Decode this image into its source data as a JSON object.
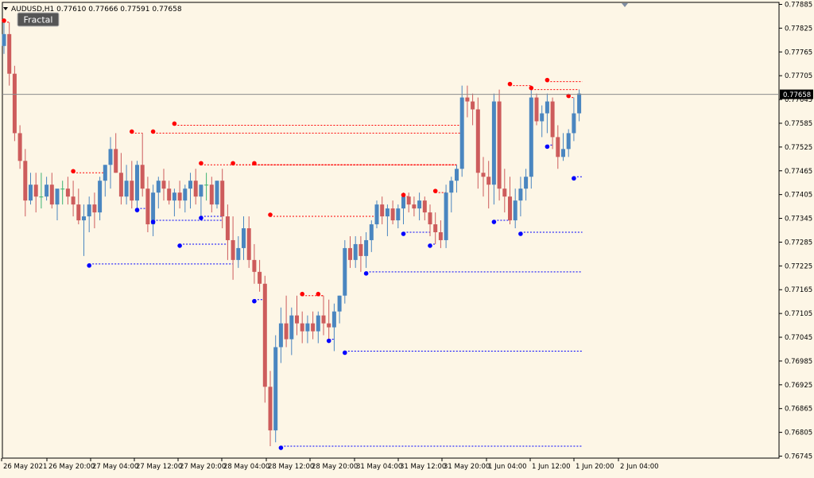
{
  "symbol_header": "AUDUSD,H1  0.77610 0.77666 0.77591 0.77658",
  "indicator_button": "Fractal",
  "current_price_label": "0.77658",
  "colors": {
    "background": "#fdf6e6",
    "bull": "#4a86c0",
    "bear": "#cd5c5c",
    "doji": "#3cb371",
    "fractal_up": "#ff0000",
    "fractal_down": "#0000ff",
    "axis": "#000000"
  },
  "chart_data": {
    "type": "candlestick",
    "ylim": [
      0.7674,
      0.7789
    ],
    "x_labels": [
      "26 May 2021",
      "26 May 20:00",
      "27 May 04:00",
      "27 May 12:00",
      "27 May 20:00",
      "28 May 04:00",
      "28 May 12:00",
      "28 May 20:00",
      "31 May 04:00",
      "31 May 12:00",
      "31 May 20:00",
      "1 Jun 04:00",
      "1 Jun 12:00",
      "1 Jun 20:00",
      "2 Jun 04:00"
    ],
    "y_ticks": [
      "0.77885",
      "0.77825",
      "0.77765",
      "0.77705",
      "0.77645",
      "0.77585",
      "0.77525",
      "0.77465",
      "0.77405",
      "0.77345",
      "0.77285",
      "0.77225",
      "0.77165",
      "0.77105",
      "0.77045",
      "0.76985",
      "0.76925",
      "0.76865",
      "0.76805",
      "0.76745"
    ],
    "current_price": 0.77658,
    "candles": [
      [
        0.7778,
        0.7784,
        0.7776,
        0.7781
      ],
      [
        0.7781,
        0.7784,
        0.7768,
        0.7771
      ],
      [
        0.7771,
        0.7773,
        0.7754,
        0.7756
      ],
      [
        0.7756,
        0.7758,
        0.7747,
        0.7749
      ],
      [
        0.7749,
        0.7752,
        0.7735,
        0.7739
      ],
      [
        0.7739,
        0.7746,
        0.7738,
        0.7743
      ],
      [
        0.7743,
        0.7746,
        0.7736,
        0.774
      ],
      [
        0.774,
        0.7746,
        0.7737,
        0.774
      ],
      [
        0.774,
        0.7745,
        0.7739,
        0.7743
      ],
      [
        0.7743,
        0.7746,
        0.7737,
        0.7738
      ],
      [
        0.7738,
        0.7741,
        0.7734,
        0.7742
      ],
      [
        0.7742,
        0.7744,
        0.7738,
        0.7742
      ],
      [
        0.7742,
        0.7745,
        0.7738,
        0.774
      ],
      [
        0.774,
        0.7744,
        0.7735,
        0.7738
      ],
      [
        0.7738,
        0.7742,
        0.7733,
        0.7734
      ],
      [
        0.7734,
        0.7738,
        0.7725,
        0.7735
      ],
      [
        0.7735,
        0.774,
        0.7731,
        0.7738
      ],
      [
        0.7738,
        0.7741,
        0.7732,
        0.7736
      ],
      [
        0.7736,
        0.7745,
        0.7734,
        0.7744
      ],
      [
        0.7744,
        0.7748,
        0.774,
        0.7748
      ],
      [
        0.7748,
        0.7755,
        0.7742,
        0.7752
      ],
      [
        0.7752,
        0.7756,
        0.7746,
        0.7746
      ],
      [
        0.7746,
        0.7751,
        0.7738,
        0.774
      ],
      [
        0.774,
        0.7748,
        0.7738,
        0.7744
      ],
      [
        0.7744,
        0.7749,
        0.7737,
        0.7739
      ],
      [
        0.7739,
        0.7749,
        0.7736,
        0.7748
      ],
      [
        0.7748,
        0.7756,
        0.774,
        0.7742
      ],
      [
        0.7742,
        0.7745,
        0.7731,
        0.7733
      ],
      [
        0.7733,
        0.7743,
        0.773,
        0.7741
      ],
      [
        0.7741,
        0.7745,
        0.7737,
        0.7744
      ],
      [
        0.7744,
        0.7747,
        0.7739,
        0.7742
      ],
      [
        0.7742,
        0.7744,
        0.7738,
        0.7739
      ],
      [
        0.7739,
        0.7742,
        0.7735,
        0.7741
      ],
      [
        0.7741,
        0.7744,
        0.7737,
        0.7739
      ],
      [
        0.7739,
        0.7743,
        0.7736,
        0.7742
      ],
      [
        0.7742,
        0.7746,
        0.7737,
        0.7744
      ],
      [
        0.7744,
        0.7747,
        0.7738,
        0.774
      ],
      [
        0.774,
        0.7743,
        0.7735,
        0.7743
      ],
      [
        0.7743,
        0.7746,
        0.7739,
        0.7743
      ],
      [
        0.7743,
        0.7745,
        0.7736,
        0.7738
      ],
      [
        0.7738,
        0.7744,
        0.7737,
        0.7744
      ],
      [
        0.7744,
        0.7747,
        0.7732,
        0.7735
      ],
      [
        0.7735,
        0.7738,
        0.7724,
        0.7729
      ],
      [
        0.7729,
        0.7735,
        0.7719,
        0.7724
      ],
      [
        0.7724,
        0.773,
        0.7722,
        0.7727
      ],
      [
        0.7727,
        0.7735,
        0.7724,
        0.7732
      ],
      [
        0.7732,
        0.7735,
        0.7722,
        0.7724
      ],
      [
        0.7724,
        0.7728,
        0.7718,
        0.7721
      ],
      [
        0.7721,
        0.7724,
        0.7716,
        0.7718
      ],
      [
        0.7718,
        0.772,
        0.7688,
        0.7692
      ],
      [
        0.7692,
        0.7696,
        0.7677,
        0.7681
      ],
      [
        0.7681,
        0.7705,
        0.7678,
        0.7702
      ],
      [
        0.7702,
        0.7712,
        0.7698,
        0.7708
      ],
      [
        0.7708,
        0.7715,
        0.7702,
        0.7704
      ],
      [
        0.7704,
        0.7712,
        0.77,
        0.771
      ],
      [
        0.771,
        0.7715,
        0.7705,
        0.7708
      ],
      [
        0.7708,
        0.7711,
        0.7703,
        0.7706
      ],
      [
        0.7706,
        0.771,
        0.7703,
        0.7708
      ],
      [
        0.7708,
        0.7711,
        0.7704,
        0.7706
      ],
      [
        0.7706,
        0.7711,
        0.7703,
        0.771
      ],
      [
        0.771,
        0.7715,
        0.7705,
        0.7708
      ],
      [
        0.7708,
        0.7714,
        0.7704,
        0.7707
      ],
      [
        0.7707,
        0.7713,
        0.7701,
        0.7711
      ],
      [
        0.7711,
        0.7715,
        0.7708,
        0.7715
      ],
      [
        0.7715,
        0.7729,
        0.7713,
        0.7727
      ],
      [
        0.7727,
        0.773,
        0.7722,
        0.7724
      ],
      [
        0.7724,
        0.773,
        0.7722,
        0.7728
      ],
      [
        0.7728,
        0.773,
        0.7721,
        0.7725
      ],
      [
        0.7725,
        0.7731,
        0.7722,
        0.7729
      ],
      [
        0.7729,
        0.7734,
        0.7726,
        0.7733
      ],
      [
        0.7733,
        0.7739,
        0.7732,
        0.7738
      ],
      [
        0.7738,
        0.774,
        0.7733,
        0.7735
      ],
      [
        0.7735,
        0.7738,
        0.773,
        0.7737
      ],
      [
        0.7737,
        0.7739,
        0.7733,
        0.7734
      ],
      [
        0.7734,
        0.7738,
        0.7732,
        0.7737
      ],
      [
        0.7737,
        0.7741,
        0.7733,
        0.774
      ],
      [
        0.774,
        0.7741,
        0.7736,
        0.7738
      ],
      [
        0.7738,
        0.774,
        0.7735,
        0.7737
      ],
      [
        0.7737,
        0.7741,
        0.7734,
        0.7739
      ],
      [
        0.7739,
        0.774,
        0.7734,
        0.7736
      ],
      [
        0.7736,
        0.7738,
        0.773,
        0.7733
      ],
      [
        0.7733,
        0.7736,
        0.7728,
        0.7731
      ],
      [
        0.7731,
        0.7734,
        0.7727,
        0.7729
      ],
      [
        0.7729,
        0.7743,
        0.7727,
        0.7741
      ],
      [
        0.7741,
        0.7745,
        0.7736,
        0.7744
      ],
      [
        0.7744,
        0.7748,
        0.7741,
        0.7747
      ],
      [
        0.7747,
        0.7768,
        0.7745,
        0.7765
      ],
      [
        0.7765,
        0.7768,
        0.776,
        0.7764
      ],
      [
        0.7764,
        0.7766,
        0.7758,
        0.7762
      ],
      [
        0.7762,
        0.7765,
        0.7742,
        0.7746
      ],
      [
        0.7746,
        0.775,
        0.774,
        0.7745
      ],
      [
        0.7745,
        0.7749,
        0.7737,
        0.7743
      ],
      [
        0.7743,
        0.7766,
        0.7738,
        0.7764
      ],
      [
        0.7764,
        0.7767,
        0.7739,
        0.7742
      ],
      [
        0.7742,
        0.7747,
        0.7736,
        0.774
      ],
      [
        0.774,
        0.7745,
        0.7733,
        0.7734
      ],
      [
        0.7734,
        0.7742,
        0.7732,
        0.7739
      ],
      [
        0.7739,
        0.7745,
        0.7735,
        0.7742
      ],
      [
        0.7742,
        0.7747,
        0.7739,
        0.7745
      ],
      [
        0.7745,
        0.7768,
        0.7742,
        0.7765
      ],
      [
        0.7765,
        0.7766,
        0.7758,
        0.7759
      ],
      [
        0.7759,
        0.7763,
        0.7755,
        0.7761
      ],
      [
        0.7761,
        0.7766,
        0.7756,
        0.7764
      ],
      [
        0.7764,
        0.7765,
        0.7752,
        0.7755
      ],
      [
        0.7755,
        0.7758,
        0.7747,
        0.775
      ],
      [
        0.775,
        0.7756,
        0.7749,
        0.7752
      ],
      [
        0.7752,
        0.7757,
        0.775,
        0.7756
      ],
      [
        0.7756,
        0.7765,
        0.7754,
        0.7761
      ],
      [
        0.7761,
        0.7767,
        0.7759,
        0.7766
      ]
    ],
    "fractals_up": [
      [
        0,
        0.7784
      ],
      [
        13,
        0.7746
      ],
      [
        24,
        0.7756
      ],
      [
        28,
        0.7756
      ],
      [
        32,
        0.7758
      ],
      [
        37,
        0.7748
      ],
      [
        43,
        0.7748
      ],
      [
        47,
        0.7748
      ],
      [
        50,
        0.7735
      ],
      [
        56,
        0.7715
      ],
      [
        59,
        0.7715
      ],
      [
        75,
        0.774
      ],
      [
        81,
        0.7741
      ],
      [
        95,
        0.7768
      ],
      [
        99,
        0.7767
      ],
      [
        102,
        0.7769
      ],
      [
        106,
        0.7765
      ]
    ],
    "fractals_down": [
      [
        16,
        0.7723
      ],
      [
        25,
        0.7737
      ],
      [
        28,
        0.7734
      ],
      [
        33,
        0.7728
      ],
      [
        37,
        0.7735
      ],
      [
        47,
        0.7714
      ],
      [
        52,
        0.7677
      ],
      [
        61,
        0.7704
      ],
      [
        64,
        0.7701
      ],
      [
        68,
        0.7721
      ],
      [
        75,
        0.7731
      ],
      [
        80,
        0.7728
      ],
      [
        92,
        0.7734
      ],
      [
        97,
        0.7731
      ],
      [
        102,
        0.7753
      ],
      [
        107,
        0.7745
      ]
    ]
  }
}
